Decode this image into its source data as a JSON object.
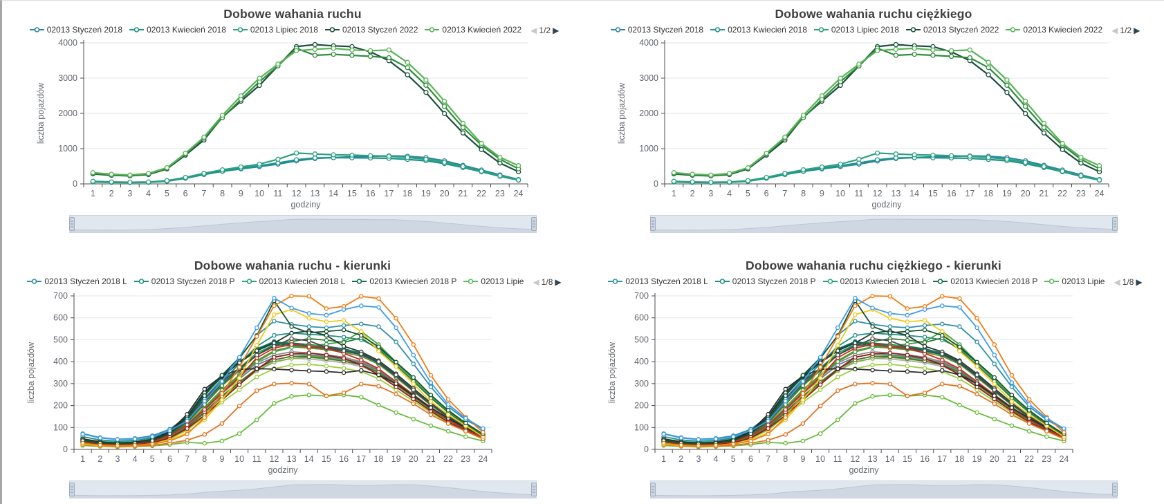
{
  "icons": {
    "prev": "◀",
    "next": "▶"
  },
  "chart_data": [
    {
      "type": "line",
      "title": "Dobowe wahania ruchu",
      "kind": "top",
      "series_set": "daily",
      "xlabel": "godziny",
      "ylabel": "liczba pojazdów",
      "x": [
        1,
        2,
        3,
        4,
        5,
        6,
        7,
        8,
        9,
        10,
        11,
        12,
        13,
        14,
        15,
        16,
        17,
        18,
        19,
        20,
        21,
        22,
        23,
        24
      ],
      "ylim": [
        0,
        4000
      ],
      "ytick_step": 1000,
      "grid": true,
      "legend": {
        "position": "top",
        "page": "1/2",
        "items": [
          {
            "label": "02013 Styczeń 2018",
            "color": "#2b87a3"
          },
          {
            "label": "02013 Kwiecień 2018",
            "color": "#1e9488"
          },
          {
            "label": "02013 Lipiec 2018",
            "color": "#2aa17e"
          },
          {
            "label": "02013 Styczeń 2022",
            "color": "#1b4d3c"
          },
          {
            "label": "02013 Kwiecień 2022",
            "color": "#57b356"
          }
        ]
      }
    },
    {
      "type": "line",
      "title": "Dobowe wahania ruchu ciężkiego",
      "kind": "top",
      "series_set": "daily",
      "xlabel": "godziny",
      "ylabel": "liczba pojazdów",
      "x": [
        1,
        2,
        3,
        4,
        5,
        6,
        7,
        8,
        9,
        10,
        11,
        12,
        13,
        14,
        15,
        16,
        17,
        18,
        19,
        20,
        21,
        22,
        23,
        24
      ],
      "ylim": [
        0,
        4000
      ],
      "ytick_step": 1000,
      "grid": true,
      "legend": {
        "position": "top",
        "page": "1/2",
        "items": [
          {
            "label": "02013 Styczeń 2018",
            "color": "#2b87a3"
          },
          {
            "label": "02013 Kwiecień 2018",
            "color": "#1e9488"
          },
          {
            "label": "02013 Lipiec 2018",
            "color": "#2aa17e"
          },
          {
            "label": "02013 Styczeń 2022",
            "color": "#1b4d3c"
          },
          {
            "label": "02013 Kwiecień 2022",
            "color": "#57b356"
          }
        ]
      }
    },
    {
      "type": "line",
      "title": "Dobowe wahania ruchu - kierunki",
      "kind": "bottom",
      "series_set": "directions",
      "xlabel": "godziny",
      "ylabel": "liczba pojazdów",
      "x": [
        1,
        2,
        3,
        4,
        5,
        6,
        7,
        8,
        9,
        10,
        11,
        12,
        13,
        14,
        15,
        16,
        17,
        18,
        19,
        20,
        21,
        22,
        23,
        24
      ],
      "ylim": [
        0,
        700
      ],
      "ytick_step": 100,
      "grid": true,
      "legend": {
        "position": "top",
        "page": "1/8",
        "items": [
          {
            "label": "02013 Styczeń 2018 L",
            "color": "#2d8fa6"
          },
          {
            "label": "02013 Styczeń 2018 P",
            "color": "#1e8f85"
          },
          {
            "label": "02013 Kwiecień 2018 L",
            "color": "#2aa17c"
          },
          {
            "label": "02013 Kwiecień 2018 P",
            "color": "#176b52"
          },
          {
            "label": "02013 Lipie",
            "color": "#5cb85c"
          }
        ]
      }
    },
    {
      "type": "line",
      "title": "Dobowe wahania ruchu ciężkiego - kierunki",
      "kind": "bottom",
      "series_set": "directions",
      "xlabel": "godziny",
      "ylabel": "liczba pojazdów",
      "x": [
        1,
        2,
        3,
        4,
        5,
        6,
        7,
        8,
        9,
        10,
        11,
        12,
        13,
        14,
        15,
        16,
        17,
        18,
        19,
        20,
        21,
        22,
        23,
        24
      ],
      "ylim": [
        0,
        700
      ],
      "ytick_step": 100,
      "grid": true,
      "legend": {
        "position": "top",
        "page": "1/8",
        "items": [
          {
            "label": "02013 Styczeń 2018 L",
            "color": "#2d8fa6"
          },
          {
            "label": "02013 Styczeń 2018 P",
            "color": "#1e8f85"
          },
          {
            "label": "02013 Kwiecień 2018 L",
            "color": "#2aa17c"
          },
          {
            "label": "02013 Kwiecień 2018 P",
            "color": "#176b52"
          },
          {
            "label": "02013 Lipie",
            "color": "#5cb85c"
          }
        ]
      }
    }
  ],
  "series_sets": {
    "daily": [
      {
        "name": "02013 Styczeń 2018",
        "color": "#2b87a3",
        "values": [
          65,
          48,
          42,
          47,
          80,
          165,
          270,
          355,
          425,
          490,
          560,
          650,
          720,
          750,
          770,
          780,
          795,
          785,
          745,
          655,
          525,
          395,
          255,
          125
        ]
      },
      {
        "name": "02013 Kwiecień 2018",
        "color": "#1e9488",
        "values": [
          55,
          42,
          38,
          44,
          75,
          158,
          265,
          360,
          440,
          515,
          595,
          685,
          735,
          745,
          740,
          735,
          725,
          695,
          655,
          575,
          465,
          345,
          215,
          105
        ]
      },
      {
        "name": "02013 Lipiec 2018",
        "color": "#2aa17e",
        "values": [
          75,
          56,
          48,
          55,
          92,
          185,
          300,
          400,
          480,
          560,
          700,
          875,
          850,
          825,
          815,
          800,
          785,
          750,
          700,
          610,
          490,
          360,
          232,
          112
        ]
      },
      {
        "name": "02013 Styczeń 2022",
        "color": "#1b4d3c",
        "values": [
          285,
          245,
          228,
          265,
          425,
          815,
          1245,
          1895,
          2345,
          2795,
          3345,
          3895,
          3950,
          3915,
          3895,
          3745,
          3495,
          3095,
          2595,
          1995,
          1445,
          975,
          590,
          345
        ]
      },
      {
        "color": "#2f8c3c",
        "values": [
          298,
          258,
          238,
          278,
          448,
          848,
          1298,
          1878,
          2398,
          2898,
          3348,
          3848,
          3648,
          3675,
          3648,
          3618,
          3578,
          3298,
          2798,
          2198,
          1598,
          1098,
          698,
          428
        ]
      },
      {
        "name": "02013 Kwiecień 2022",
        "color": "#57b356",
        "values": [
          320,
          275,
          252,
          298,
          458,
          868,
          1328,
          1948,
          2498,
          2998,
          3398,
          3778,
          3818,
          3845,
          3798,
          3778,
          3798,
          3448,
          2948,
          2348,
          1718,
          1148,
          755,
          518
        ]
      }
    ],
    "directions": [
      {
        "name": "02013 Styczeń 2018 L",
        "color": "#2d8fa6",
        "values": [
          72,
          54,
          46,
          50,
          62,
          92,
          150,
          235,
          320,
          415,
          520,
          585,
          570,
          560,
          555,
          565,
          572,
          560,
          490,
          390,
          285,
          195,
          135,
          92
        ]
      },
      {
        "name": "02013 Styczeń 2018 P",
        "color": "#1e8f85",
        "values": [
          58,
          43,
          37,
          41,
          52,
          80,
          135,
          225,
          310,
          390,
          470,
          520,
          530,
          525,
          520,
          512,
          500,
          462,
          395,
          318,
          240,
          172,
          116,
          70
        ]
      },
      {
        "name": "02013 Kwiecień 2018 L",
        "color": "#2aa17c",
        "values": [
          48,
          36,
          31,
          35,
          46,
          76,
          132,
          222,
          305,
          372,
          440,
          478,
          470,
          462,
          456,
          448,
          432,
          394,
          334,
          268,
          204,
          147,
          100,
          59
        ]
      },
      {
        "name": "02013 Kwiecień 2018 P",
        "color": "#176b52",
        "values": [
          44,
          32,
          28,
          31,
          43,
          74,
          140,
          248,
          330,
          398,
          458,
          492,
          480,
          472,
          466,
          456,
          440,
          400,
          340,
          274,
          208,
          151,
          103,
          61
        ]
      },
      {
        "name": "02013 Lipie",
        "color": "#5cb85c",
        "values": [
          32,
          24,
          20,
          23,
          32,
          55,
          102,
          172,
          245,
          308,
          368,
          408,
          424,
          428,
          420,
          410,
          393,
          358,
          302,
          244,
          186,
          135,
          92,
          54
        ]
      },
      {
        "color": "#b0b0b0",
        "values": [
          33,
          24,
          20,
          23,
          31,
          52,
          98,
          168,
          240,
          305,
          365,
          400,
          415,
          412,
          405,
          395,
          378,
          345,
          292,
          236,
          180,
          132,
          90,
          52
        ]
      },
      {
        "color": "#8c8c8c",
        "values": [
          36,
          26,
          22,
          25,
          34,
          58,
          108,
          185,
          262,
          330,
          395,
          430,
          445,
          440,
          432,
          420,
          400,
          365,
          310,
          250,
          192,
          140,
          96,
          56
        ]
      },
      {
        "color": "#607d8b",
        "values": [
          34,
          25,
          21,
          24,
          33,
          57,
          106,
          180,
          255,
          322,
          385,
          420,
          436,
          432,
          424,
          412,
          395,
          360,
          305,
          246,
          188,
          137,
          93,
          54
        ]
      },
      {
        "color": "#9ccc3f",
        "values": [
          27,
          20,
          17,
          19,
          27,
          47,
          88,
          150,
          215,
          272,
          330,
          368,
          385,
          388,
          380,
          370,
          355,
          322,
          272,
          220,
          168,
          122,
          83,
          48
        ]
      },
      {
        "color": "#7cb342",
        "values": [
          30,
          22,
          19,
          21,
          30,
          52,
          98,
          165,
          235,
          298,
          358,
          398,
          415,
          420,
          412,
          402,
          385,
          350,
          295,
          238,
          182,
          133,
          90,
          52
        ]
      },
      {
        "color": "#6b8e23",
        "values": [
          35,
          26,
          22,
          25,
          35,
          61,
          115,
          192,
          272,
          340,
          405,
          450,
          468,
          462,
          455,
          442,
          425,
          388,
          328,
          264,
          202,
          146,
          100,
          58
        ]
      },
      {
        "color": "#556b2f",
        "values": [
          31,
          23,
          19,
          22,
          31,
          54,
          100,
          170,
          242,
          305,
          368,
          408,
          425,
          422,
          415,
          403,
          386,
          352,
          297,
          240,
          183,
          133,
          90,
          52
        ]
      },
      {
        "color": "#355e3b",
        "values": [
          39,
          28,
          24,
          27,
          38,
          68,
          128,
          215,
          298,
          365,
          432,
          470,
          485,
          478,
          470,
          458,
          440,
          402,
          340,
          274,
          209,
          151,
          103,
          60
        ]
      },
      {
        "color": "#00897b",
        "values": [
          44,
          31,
          27,
          30,
          42,
          75,
          142,
          252,
          330,
          395,
          455,
          490,
          478,
          470,
          465,
          455,
          438,
          398,
          338,
          272,
          208,
          150,
          102,
          60
        ]
      },
      {
        "color": "#0b5d66",
        "values": [
          47,
          34,
          29,
          32,
          45,
          80,
          150,
          262,
          338,
          400,
          455,
          488,
          476,
          468,
          460,
          450,
          432,
          394,
          334,
          268,
          205,
          148,
          101,
          59
        ]
      },
      {
        "color": "#43a047",
        "values": [
          34,
          25,
          21,
          24,
          34,
          60,
          112,
          188,
          268,
          335,
          400,
          445,
          465,
          472,
          480,
          492,
          538,
          478,
          398,
          318,
          240,
          170,
          115,
          66
        ]
      },
      {
        "color": "#2e7d32",
        "values": [
          37,
          27,
          23,
          26,
          37,
          65,
          122,
          205,
          290,
          360,
          430,
          478,
          492,
          505,
          498,
          488,
          508,
          455,
          385,
          310,
          235,
          168,
          113,
          65
        ]
      },
      {
        "color": "#1f3b2c",
        "values": [
          45,
          32,
          28,
          31,
          44,
          78,
          148,
          258,
          332,
          395,
          450,
          485,
          530,
          540,
          520,
          470,
          445,
          405,
          345,
          278,
          212,
          154,
          105,
          62
        ]
      },
      {
        "color": "#8e1f14",
        "values": [
          30,
          22,
          19,
          22,
          30,
          52,
          95,
          155,
          225,
          295,
          365,
          420,
          435,
          440,
          430,
          415,
          385,
          340,
          285,
          230,
          175,
          125,
          85,
          48
        ]
      },
      {
        "color": "#cc2a1e",
        "values": [
          38,
          27,
          23,
          26,
          36,
          62,
          112,
          182,
          258,
          328,
          418,
          462,
          478,
          468,
          462,
          438,
          408,
          368,
          308,
          248,
          188,
          138,
          93,
          53
        ]
      },
      {
        "color": "#2b2b2b",
        "values": [
          48,
          34,
          29,
          33,
          46,
          82,
          160,
          275,
          335,
          365,
          368,
          366,
          362,
          358,
          355,
          350,
          360,
          340,
          300,
          245,
          190,
          142,
          98,
          60
        ]
      },
      {
        "color": "#4a4a4a",
        "values": [
          42,
          30,
          26,
          29,
          40,
          70,
          135,
          230,
          310,
          370,
          430,
          470,
          505,
          495,
          465,
          450,
          435,
          400,
          340,
          272,
          208,
          152,
          105,
          62
        ]
      },
      {
        "color": "#66bb3a",
        "values": [
          18,
          14,
          11,
          13,
          16,
          22,
          32,
          28,
          38,
          72,
          135,
          210,
          242,
          248,
          243,
          248,
          238,
          202,
          168,
          138,
          108,
          83,
          58,
          38
        ]
      },
      {
        "color": "#e2711d",
        "values": [
          22,
          16,
          13,
          15,
          19,
          28,
          42,
          68,
          118,
          198,
          268,
          298,
          302,
          298,
          244,
          258,
          298,
          288,
          252,
          208,
          158,
          118,
          83,
          48
        ]
      },
      {
        "color": "#f2ca19",
        "values": [
          24,
          18,
          16,
          18,
          26,
          42,
          76,
          135,
          225,
          325,
          475,
          615,
          638,
          598,
          582,
          588,
          538,
          448,
          378,
          298,
          218,
          158,
          108,
          58
        ]
      },
      {
        "color": "#14532d",
        "values": [
          40,
          29,
          25,
          28,
          40,
          72,
          138,
          245,
          338,
          418,
          518,
          678,
          560,
          532,
          538,
          545,
          520,
          468,
          398,
          328,
          248,
          178,
          120,
          70
        ]
      },
      {
        "color": "#f07c12",
        "values": [
          28,
          20,
          17,
          19,
          24,
          38,
          70,
          145,
          255,
          375,
          515,
          655,
          700,
          698,
          642,
          652,
          698,
          688,
          598,
          478,
          338,
          228,
          148,
          78
        ]
      },
      {
        "color": "#3d9be9",
        "values": [
          70,
          52,
          45,
          48,
          58,
          85,
          130,
          220,
          310,
          420,
          555,
          690,
          645,
          620,
          612,
          638,
          655,
          648,
          555,
          430,
          305,
          205,
          142,
          95
        ]
      }
    ]
  }
}
